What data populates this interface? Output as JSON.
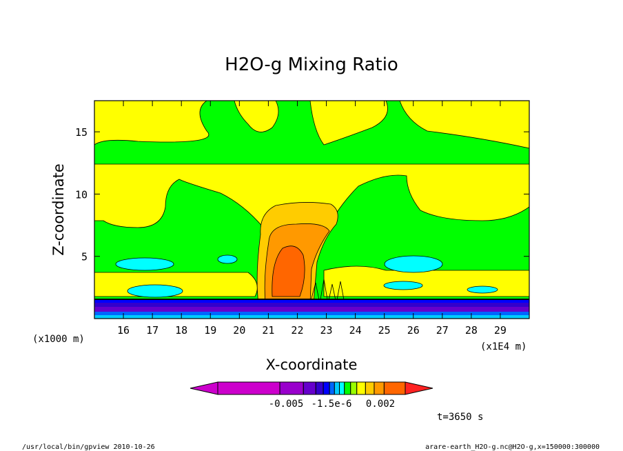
{
  "chart_data": {
    "type": "heatmap",
    "title": "H2O-g Mixing Ratio",
    "xlabel": "X-coordinate",
    "ylabel": "Z-coordinate",
    "x_units_left": "(x1000 m)",
    "x_units_right": "(x1E4 m)",
    "xlim": [
      15.0,
      30.0
    ],
    "ylim": [
      0.0,
      17.5
    ],
    "x_ticks": [
      "16",
      "17",
      "18",
      "19",
      "20",
      "21",
      "22",
      "23",
      "24",
      "25",
      "26",
      "27",
      "28",
      "29"
    ],
    "y_ticks": [
      "5",
      "10",
      "15"
    ],
    "colorbar_labels": [
      "-0.005",
      "-1.5e-6",
      "0.002"
    ],
    "time_label": "t=3650 s",
    "footer_left": "/usr/local/bin/gpview  2010-10-26",
    "footer_right": "arare-earth_H2O-g.nc@H2O-g,x=150000:300000",
    "colors": {
      "background": "#00ff00",
      "positive_low": "#ffff00",
      "positive_mid": "#ffcc00",
      "positive_high": "#ff9900",
      "positive_max": "#ff6600",
      "negative_small": "#00ffff",
      "negative_levels": [
        "#00ccff",
        "#0066ff",
        "#0000ff",
        "#3300cc",
        "#6600cc",
        "#9900cc",
        "#cc00cc"
      ]
    }
  }
}
